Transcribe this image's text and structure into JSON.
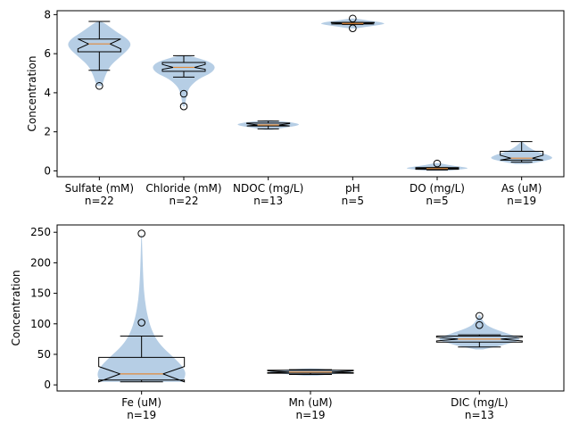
{
  "chart_data": [
    {
      "type": "violin",
      "ylabel": "Concentration",
      "ylim": [
        -0.3,
        8.2
      ],
      "yticks": [
        0,
        2,
        4,
        6,
        8
      ],
      "categories": [
        {
          "name": "Sulfate (mM)",
          "n_label": "n=22",
          "min": 5.15,
          "q1": 6.1,
          "median": 6.5,
          "q3": 6.75,
          "whisker_low": 5.15,
          "whisker_high": 7.65,
          "notch_low": 6.25,
          "notch_high": 6.75,
          "outliers": [
            4.35
          ],
          "violin": {
            "lo": 4.35,
            "hi": 7.65,
            "profile": [
              [
                4.35,
                0.08
              ],
              [
                4.7,
                0.15
              ],
              [
                5.0,
                0.22
              ],
              [
                5.4,
                0.35
              ],
              [
                5.8,
                0.62
              ],
              [
                6.2,
                0.9
              ],
              [
                6.5,
                1.0
              ],
              [
                6.8,
                0.85
              ],
              [
                7.1,
                0.55
              ],
              [
                7.4,
                0.3
              ],
              [
                7.65,
                0.08
              ]
            ]
          }
        },
        {
          "name": "Chloride (mM)",
          "n_label": "n=22",
          "min": 4.8,
          "q1": 5.1,
          "median": 5.3,
          "q3": 5.55,
          "whisker_low": 4.8,
          "whisker_high": 5.9,
          "notch_low": 5.2,
          "notch_high": 5.45,
          "outliers": [
            3.95,
            3.3
          ],
          "violin": {
            "lo": 3.3,
            "hi": 5.9,
            "profile": [
              [
                3.3,
                0.03
              ],
              [
                3.6,
                0.06
              ],
              [
                3.95,
                0.1
              ],
              [
                4.3,
                0.18
              ],
              [
                4.7,
                0.45
              ],
              [
                5.0,
                0.85
              ],
              [
                5.3,
                1.0
              ],
              [
                5.55,
                0.85
              ],
              [
                5.75,
                0.5
              ],
              [
                5.9,
                0.15
              ]
            ]
          }
        },
        {
          "name": "NDOC (mg/L)",
          "n_label": "n=13",
          "min": 2.15,
          "q1": 2.3,
          "median": 2.35,
          "q3": 2.45,
          "whisker_low": 2.15,
          "whisker_high": 2.55,
          "notch_low": 2.3,
          "notch_high": 2.42,
          "outliers": [],
          "violin": {
            "lo": 2.1,
            "hi": 2.6,
            "profile": [
              [
                2.1,
                0.1
              ],
              [
                2.2,
                0.45
              ],
              [
                2.3,
                0.85
              ],
              [
                2.38,
                1.0
              ],
              [
                2.48,
                0.75
              ],
              [
                2.55,
                0.35
              ],
              [
                2.6,
                0.1
              ]
            ]
          }
        },
        {
          "name": "pH",
          "n_label": "n=5",
          "min": 7.5,
          "q1": 7.52,
          "median": 7.55,
          "q3": 7.6,
          "whisker_low": 7.5,
          "whisker_high": 7.6,
          "notch_low": 7.52,
          "notch_high": 7.58,
          "outliers": [
            7.8,
            7.3
          ],
          "violin": {
            "lo": 7.3,
            "hi": 7.8,
            "profile": [
              [
                7.3,
                0.12
              ],
              [
                7.4,
                0.55
              ],
              [
                7.5,
                0.95
              ],
              [
                7.55,
                1.0
              ],
              [
                7.62,
                0.85
              ],
              [
                7.7,
                0.45
              ],
              [
                7.8,
                0.1
              ]
            ]
          }
        },
        {
          "name": "DO (mg/L)",
          "n_label": "n=5",
          "min": 0.05,
          "q1": 0.08,
          "median": 0.12,
          "q3": 0.17,
          "whisker_low": 0.05,
          "whisker_high": 0.17,
          "notch_low": 0.1,
          "notch_high": 0.15,
          "outliers": [
            0.38
          ],
          "violin": {
            "lo": 0.0,
            "hi": 0.4,
            "profile": [
              [
                0.0,
                0.25
              ],
              [
                0.08,
                0.75
              ],
              [
                0.13,
                1.0
              ],
              [
                0.2,
                0.8
              ],
              [
                0.3,
                0.35
              ],
              [
                0.4,
                0.08
              ]
            ]
          }
        },
        {
          "name": "As (uM)",
          "n_label": "n=19",
          "min": 0.45,
          "q1": 0.55,
          "median": 0.65,
          "q3": 1.0,
          "whisker_low": 0.45,
          "whisker_high": 1.5,
          "notch_low": 0.55,
          "notch_high": 0.8,
          "outliers": [],
          "violin": {
            "lo": 0.35,
            "hi": 1.5,
            "profile": [
              [
                0.35,
                0.2
              ],
              [
                0.5,
                0.7
              ],
              [
                0.65,
                1.0
              ],
              [
                0.8,
                0.85
              ],
              [
                1.0,
                0.45
              ],
              [
                1.2,
                0.22
              ],
              [
                1.4,
                0.08
              ],
              [
                1.5,
                0.02
              ]
            ]
          }
        }
      ]
    },
    {
      "type": "violin",
      "ylabel": "Concentration",
      "ylim": [
        -10,
        262
      ],
      "yticks": [
        0,
        50,
        100,
        150,
        200,
        250
      ],
      "categories": [
        {
          "name": "Fe (uM)",
          "n_label": "n=19",
          "min": 5,
          "q1": 8,
          "median": 18,
          "q3": 45,
          "whisker_low": 5,
          "whisker_high": 80,
          "notch_low": 5,
          "notch_high": 30,
          "outliers": [
            248,
            102
          ],
          "violin": {
            "lo": 5,
            "hi": 248,
            "profile": [
              [
                5,
                0.92
              ],
              [
                15,
                1.0
              ],
              [
                28,
                0.95
              ],
              [
                45,
                0.72
              ],
              [
                65,
                0.42
              ],
              [
                85,
                0.25
              ],
              [
                110,
                0.14
              ],
              [
                140,
                0.07
              ],
              [
                170,
                0.04
              ],
              [
                210,
                0.02
              ],
              [
                248,
                0.005
              ]
            ]
          }
        },
        {
          "name": "Mn (uM)",
          "n_label": "n=19",
          "min": 17,
          "q1": 19,
          "median": 21,
          "q3": 24,
          "whisker_low": 17,
          "whisker_high": 25,
          "notch_low": 20,
          "notch_high": 23,
          "outliers": [],
          "violin": {
            "lo": 15,
            "hi": 27,
            "profile": [
              [
                15,
                0.15
              ],
              [
                18,
                0.6
              ],
              [
                21,
                1.0
              ],
              [
                24,
                0.7
              ],
              [
                27,
                0.15
              ]
            ]
          }
        },
        {
          "name": "DIC (mg/L)",
          "n_label": "n=13",
          "min": 62,
          "q1": 70,
          "median": 75,
          "q3": 80,
          "whisker_low": 62,
          "whisker_high": 82,
          "notch_low": 72,
          "notch_high": 78,
          "outliers": [
            113,
            98
          ],
          "violin": {
            "lo": 58,
            "hi": 115,
            "profile": [
              [
                58,
                0.08
              ],
              [
                65,
                0.55
              ],
              [
                75,
                1.0
              ],
              [
                85,
                0.6
              ],
              [
                95,
                0.2
              ],
              [
                105,
                0.07
              ],
              [
                115,
                0.02
              ]
            ]
          }
        }
      ]
    }
  ],
  "colors": {
    "violin_fill": "#a9c5e1",
    "median": "#e08a3b",
    "axis": "#000000"
  }
}
